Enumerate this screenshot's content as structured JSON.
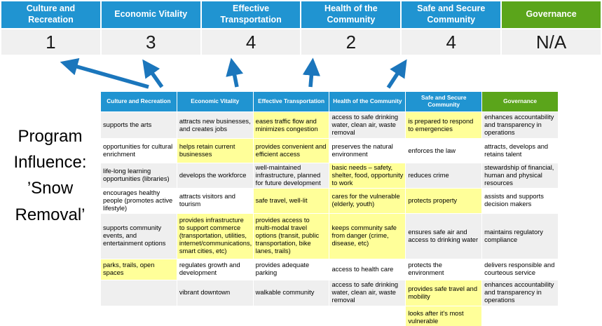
{
  "title": {
    "text": "Program\nInfluence:\n’Snow\nRemoval’"
  },
  "colors": {
    "blue": "#2094D1",
    "green": "#5BA51B",
    "highlight": "#FFFF99",
    "band": "#EFEFEF",
    "score_bg": "#F0F0F0",
    "arrow": "#1B76BC"
  },
  "summary": {
    "columns": [
      {
        "label": "Culture and Recreation",
        "score": "1",
        "accent": "blue"
      },
      {
        "label": "Economic Vitality",
        "score": "3",
        "accent": "blue"
      },
      {
        "label": "Effective Transportation",
        "score": "4",
        "accent": "blue"
      },
      {
        "label": "Health of the Community",
        "score": "2",
        "accent": "blue"
      },
      {
        "label": "Safe and Secure Community",
        "score": "4",
        "accent": "blue"
      },
      {
        "label": "Governance",
        "score": "N/A",
        "accent": "green"
      }
    ]
  },
  "matrix": {
    "headers": [
      {
        "label": "Culture and Recreation",
        "accent": "blue"
      },
      {
        "label": "Economic Vitality",
        "accent": "blue"
      },
      {
        "label": "Effective Transportation",
        "accent": "blue"
      },
      {
        "label": "Health of the Community",
        "accent": "blue"
      },
      {
        "label": "Safe and Secure Community",
        "accent": "blue"
      },
      {
        "label": "Governance",
        "accent": "green"
      }
    ],
    "rows": [
      [
        {
          "text": "supports the arts",
          "highlight": false
        },
        {
          "text": "attracts new businesses, and creates jobs",
          "highlight": false
        },
        {
          "text": "eases traffic flow and minimizes congestion",
          "highlight": true
        },
        {
          "text": "access to safe drinking water, clean air, waste removal",
          "highlight": false
        },
        {
          "text": "is prepared to respond to emergencies",
          "highlight": true
        },
        {
          "text": "enhances accountability and transparency in operations",
          "highlight": false
        }
      ],
      [
        {
          "text": "opportunities for cultural enrichment",
          "highlight": false
        },
        {
          "text": "helps retain current businesses",
          "highlight": true
        },
        {
          "text": "provides convenient and efficient access",
          "highlight": true
        },
        {
          "text": "preserves the natural environment",
          "highlight": false
        },
        {
          "text": "enforces the law",
          "highlight": false
        },
        {
          "text": "attracts, develops and retains talent",
          "highlight": false
        }
      ],
      [
        {
          "text": "life-long learning opportunities (libraries)",
          "highlight": false
        },
        {
          "text": "develops the workforce",
          "highlight": false
        },
        {
          "text": "well-maintained infrastructure, planned for future development",
          "highlight": false
        },
        {
          "text": "basic needs – safety, shelter, food, opportunity to work",
          "highlight": true
        },
        {
          "text": "reduces crime",
          "highlight": false
        },
        {
          "text": "stewardship of financial, human and physical resources",
          "highlight": false
        }
      ],
      [
        {
          "text": "encourages healthy people (promotes active lifestyle)",
          "highlight": false
        },
        {
          "text": "attracts visitors and tourism",
          "highlight": false
        },
        {
          "text": "safe travel, well-lit",
          "highlight": true
        },
        {
          "text": "cares for the vulnerable (elderly, youth)",
          "highlight": true
        },
        {
          "text": "protects property",
          "highlight": true
        },
        {
          "text": "assists and supports decision makers",
          "highlight": false
        }
      ],
      [
        {
          "text": "supports community events, and entertainment options",
          "highlight": false
        },
        {
          "text": "provides infrastructure to support commerce (transportation, utilities, internet/communications, smart cities, etc)",
          "highlight": true
        },
        {
          "text": "provides access to multi-modal travel options (transit, public transportation, bike lanes, trails)",
          "highlight": true
        },
        {
          "text": "keeps community safe from danger (crime, disease, etc)",
          "highlight": true
        },
        {
          "text": "ensures safe air and access to drinking water",
          "highlight": false
        },
        {
          "text": "maintains regulatory compliance",
          "highlight": false
        }
      ],
      [
        {
          "text": "parks, trails, open spaces",
          "highlight": true
        },
        {
          "text": "regulates growth and development",
          "highlight": false
        },
        {
          "text": "provides adequate parking",
          "highlight": false
        },
        {
          "text": "access to health care",
          "highlight": false
        },
        {
          "text": "protects the environment",
          "highlight": false
        },
        {
          "text": "delivers responsible and courteous service",
          "highlight": false
        }
      ],
      [
        {
          "text": "",
          "highlight": false
        },
        {
          "text": "vibrant downtown",
          "highlight": false
        },
        {
          "text": "walkable community",
          "highlight": false
        },
        {
          "text": "access to safe drinking water, clean air, waste removal",
          "highlight": false
        },
        {
          "text": "provides safe travel and mobility",
          "highlight": true
        },
        {
          "text": "enhances accountability and transparency in operations",
          "highlight": false
        }
      ],
      [
        {
          "text": "",
          "highlight": false
        },
        {
          "text": "",
          "highlight": false
        },
        {
          "text": "",
          "highlight": false
        },
        {
          "text": "",
          "highlight": false
        },
        {
          "text": "looks after it's most vulnerable",
          "highlight": true
        },
        {
          "text": "",
          "highlight": false
        }
      ]
    ]
  }
}
